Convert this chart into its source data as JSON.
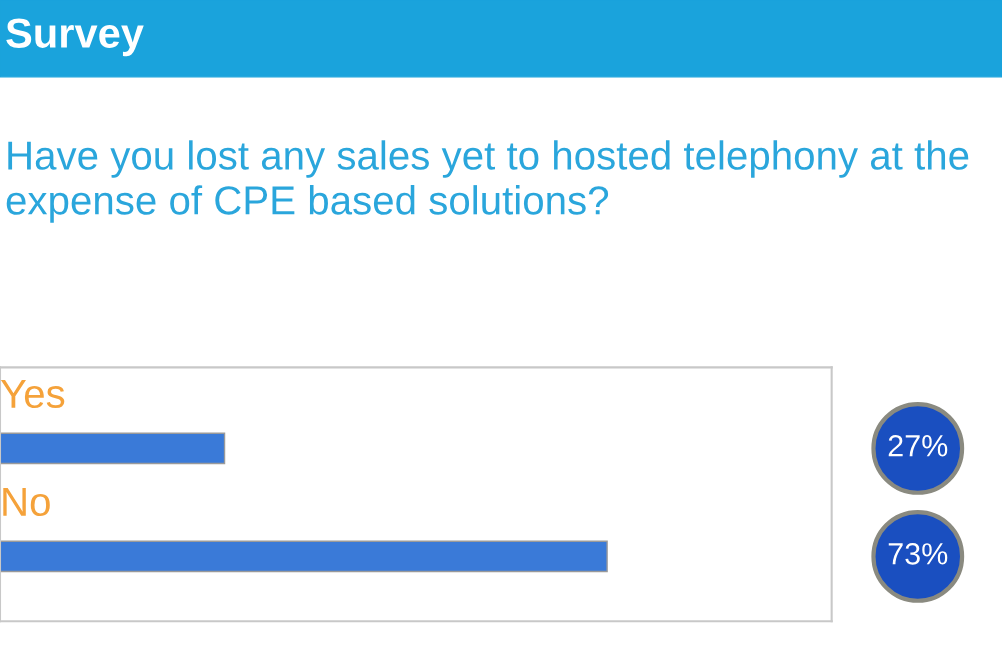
{
  "chart_data": {
    "type": "bar",
    "orientation": "horizontal",
    "title": "Survey",
    "subtitle": "Have you lost any sales yet to hosted telephony at the expense of CPE based solutions?",
    "categories": [
      "Yes",
      "No"
    ],
    "values": [
      27,
      73
    ],
    "color": "#3a7ad8",
    "value_labels": [
      "27%",
      "73%"
    ],
    "xlim": [
      0,
      100
    ],
    "tick_labels": false,
    "grid": false
  }
}
